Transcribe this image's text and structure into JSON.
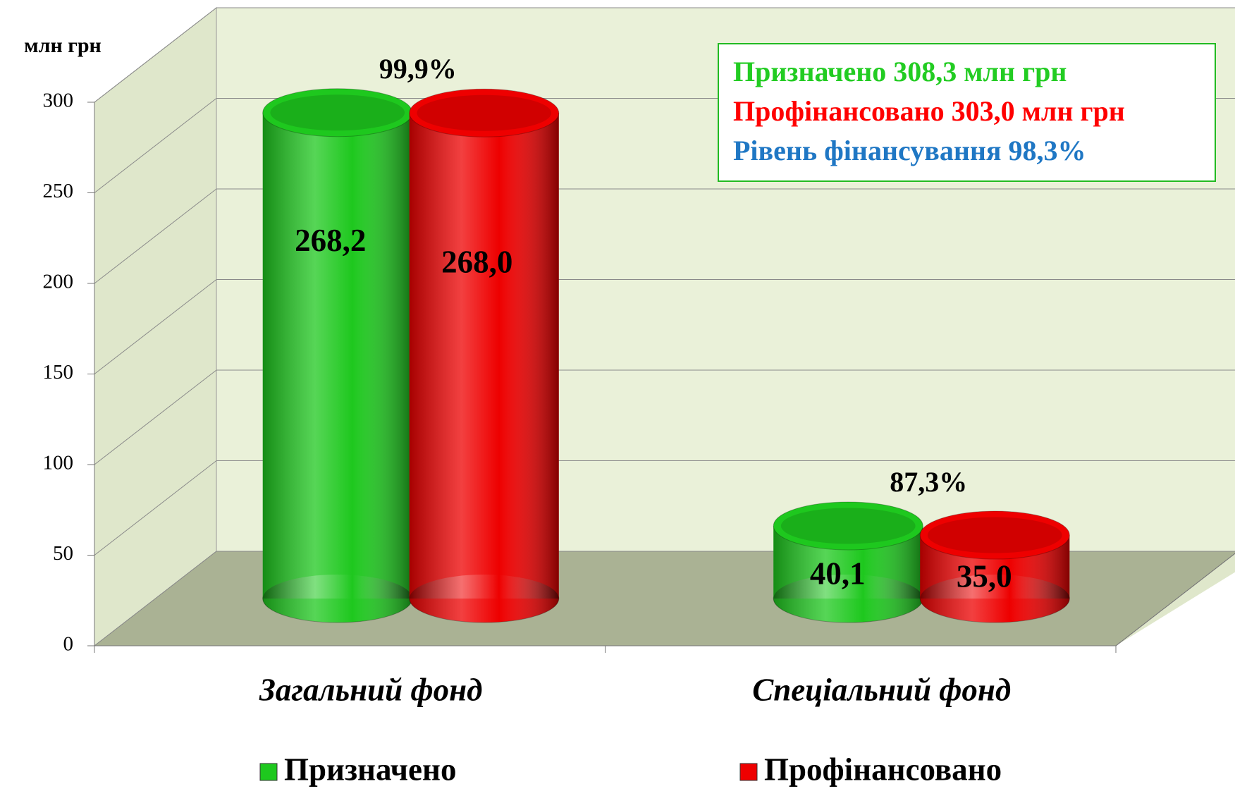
{
  "chart_data": {
    "type": "cylinder",
    "ylabel": "млн грн",
    "categories": [
      "Загальний фонд",
      "Спеціальний фонд"
    ],
    "series": [
      {
        "name": "Призначено",
        "color": "#1ec81e",
        "values": [
          268.2,
          40.1
        ],
        "value_labels": [
          "268,2",
          "40,1"
        ]
      },
      {
        "name": "Профінансовано",
        "color": "#ee0000",
        "values": [
          268.0,
          35.0
        ],
        "value_labels": [
          "268,0",
          "35,0"
        ]
      }
    ],
    "category_annotations": [
      "99,9%",
      "87,3%"
    ],
    "info_box": [
      {
        "text": "Призначено 308,3 млн грн",
        "color": "#22cc22"
      },
      {
        "text": "Профінансовано 303,0 млн грн",
        "color": "#ff0000"
      },
      {
        "text": "Рівень фінансування 98,3%",
        "color": "#1f77c4"
      }
    ],
    "ylim": [
      0,
      300
    ],
    "yticks": [
      0,
      50,
      100,
      150,
      200,
      250,
      300
    ],
    "grid": true,
    "legend": "bottom"
  }
}
